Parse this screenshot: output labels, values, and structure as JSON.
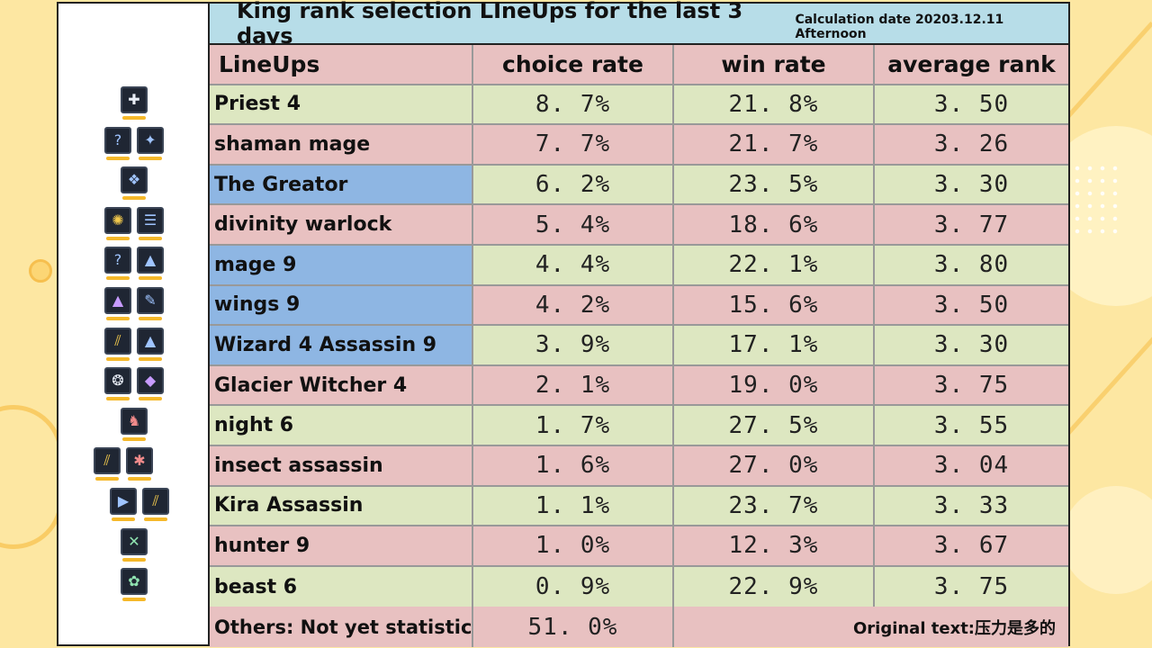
{
  "title": "King rank selection LIneUps for the last 3 days",
  "calc_date": "Calculation date 20203.12.11 Afternoon",
  "headers": {
    "lineups": "LineUps",
    "choice_rate": "choice rate",
    "win_rate": "win rate",
    "average_rank": "average rank"
  },
  "rows": [
    {
      "name": "Priest 4",
      "choice": "8. 7%",
      "win": "21. 8%",
      "rank": "3. 50",
      "name_color": "green",
      "row_color": "green",
      "icons": [
        {
          "name": "priest-icon",
          "glyph": "✚",
          "tone": ""
        }
      ]
    },
    {
      "name": "shaman mage",
      "choice": "7. 7%",
      "win": "21. 7%",
      "rank": "3. 26",
      "name_color": "pink",
      "row_color": "pink",
      "icons": [
        {
          "name": "mage-icon",
          "glyph": "?",
          "tone": "blue"
        },
        {
          "name": "shaman-icon",
          "glyph": "✦",
          "tone": "blue"
        }
      ]
    },
    {
      "name": "The Greator",
      "choice": "6. 2%",
      "win": "23. 5%",
      "rank": "3. 30",
      "name_color": "blue",
      "row_color": "green",
      "icons": [
        {
          "name": "creator-icon",
          "glyph": "❖",
          "tone": "blue"
        }
      ]
    },
    {
      "name": "divinity warlock",
      "choice": "5. 4%",
      "win": "18. 6%",
      "rank": "3. 77",
      "name_color": "pink",
      "row_color": "pink",
      "icons": [
        {
          "name": "divinity-icon",
          "glyph": "✺",
          "tone": "gold"
        },
        {
          "name": "warlock-icon",
          "glyph": "☰",
          "tone": "blue"
        }
      ]
    },
    {
      "name": "mage 9",
      "choice": "4. 4%",
      "win": "22. 1%",
      "rank": "3. 80",
      "name_color": "blue",
      "row_color": "green",
      "icons": [
        {
          "name": "mage-icon",
          "glyph": "?",
          "tone": "blue"
        },
        {
          "name": "wizard-hat-icon",
          "glyph": "▲",
          "tone": "blue"
        }
      ]
    },
    {
      "name": "wings 9",
      "choice": "4. 2%",
      "win": "15. 6%",
      "rank": "3. 50",
      "name_color": "blue",
      "row_color": "pink",
      "icons": [
        {
          "name": "wizard-hat-icon",
          "glyph": "▲",
          "tone": "purple"
        },
        {
          "name": "feather-icon",
          "glyph": "✎",
          "tone": "blue"
        }
      ]
    },
    {
      "name": "Wizard 4 Assassin 9",
      "choice": "3. 9%",
      "win": "17. 1%",
      "rank": "3. 30",
      "name_color": "blue",
      "row_color": "green",
      "icons": [
        {
          "name": "assassin-icon",
          "glyph": "⫽",
          "tone": "gold"
        },
        {
          "name": "wizard-hat-icon",
          "glyph": "▲",
          "tone": "blue"
        }
      ]
    },
    {
      "name": "Glacier Witcher 4",
      "choice": "2. 1%",
      "win": "19. 0%",
      "rank": "3. 75",
      "name_color": "pink",
      "row_color": "pink",
      "icons": [
        {
          "name": "glacier-icon",
          "glyph": "❂",
          "tone": ""
        },
        {
          "name": "witcher-icon",
          "glyph": "◆",
          "tone": "purple"
        }
      ]
    },
    {
      "name": "night 6",
      "choice": "1. 7%",
      "win": "27. 5%",
      "rank": "3. 55",
      "name_color": "green",
      "row_color": "green",
      "icons": [
        {
          "name": "knight-icon",
          "glyph": "♞",
          "tone": "red"
        }
      ]
    },
    {
      "name": "insect assassin",
      "choice": "1. 6%",
      "win": "27. 0%",
      "rank": "3. 04",
      "name_color": "pink",
      "row_color": "pink",
      "icons": [
        {
          "name": "assassin-icon",
          "glyph": "⫽",
          "tone": "gold"
        },
        {
          "name": "insect-icon",
          "glyph": "✱",
          "tone": "red"
        }
      ]
    },
    {
      "name": "Kira Assassin",
      "choice": "1. 1%",
      "win": "23. 7%",
      "rank": "3. 33",
      "name_color": "green",
      "row_color": "green",
      "icons": [
        {
          "name": "kira-icon",
          "glyph": "▶",
          "tone": "blue"
        },
        {
          "name": "assassin-icon",
          "glyph": "⫽",
          "tone": "gold"
        }
      ]
    },
    {
      "name": "hunter 9",
      "choice": "1. 0%",
      "win": "12. 3%",
      "rank": "3. 67",
      "name_color": "pink",
      "row_color": "pink",
      "icons": [
        {
          "name": "hunter-icon",
          "glyph": "✕",
          "tone": "green"
        }
      ]
    },
    {
      "name": "beast 6",
      "choice": "0. 9%",
      "win": "22. 9%",
      "rank": "3. 75",
      "name_color": "green",
      "row_color": "green",
      "icons": [
        {
          "name": "beast-paw-icon",
          "glyph": "✿",
          "tone": "green"
        }
      ]
    }
  ],
  "footer": {
    "label": "Others: Not yet statistic",
    "choice": "51. 0%",
    "note": "Original text:压力是多的"
  }
}
